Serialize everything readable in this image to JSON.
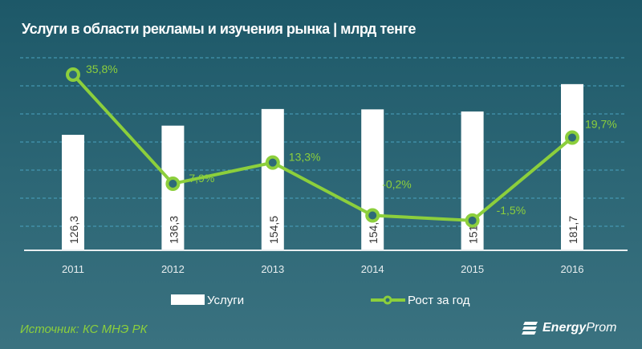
{
  "title": "Услуги в области  рекламы и изучения рынка | млрд тенге",
  "source": "Источник: КС МНЭ РК",
  "logo": {
    "part1": "Energy",
    "part2": "Prom"
  },
  "colors": {
    "bar": "#ffffff",
    "line": "#8ccf3c",
    "grid": "#4aa3c0"
  },
  "chart_data": {
    "type": "bar+line",
    "categories": [
      "2011",
      "2012",
      "2013",
      "2014",
      "2015",
      "2016"
    ],
    "series": [
      {
        "name": "Услуги",
        "type": "bar",
        "values": [
          126.3,
          136.3,
          154.5,
          154.1,
          151.8,
          181.7
        ],
        "labels": [
          "126,3",
          "136,3",
          "154,5",
          "154,1",
          "151,8",
          "181,7"
        ]
      },
      {
        "name": "Рост за год",
        "type": "line",
        "values": [
          35.8,
          7.9,
          13.3,
          -0.2,
          -1.5,
          19.7
        ],
        "labels": [
          "35,8%",
          "7,9%",
          "13,3%",
          "-0,2%",
          "-1,5%",
          "19,7%"
        ]
      }
    ],
    "grid": true,
    "legend": "bottom"
  }
}
